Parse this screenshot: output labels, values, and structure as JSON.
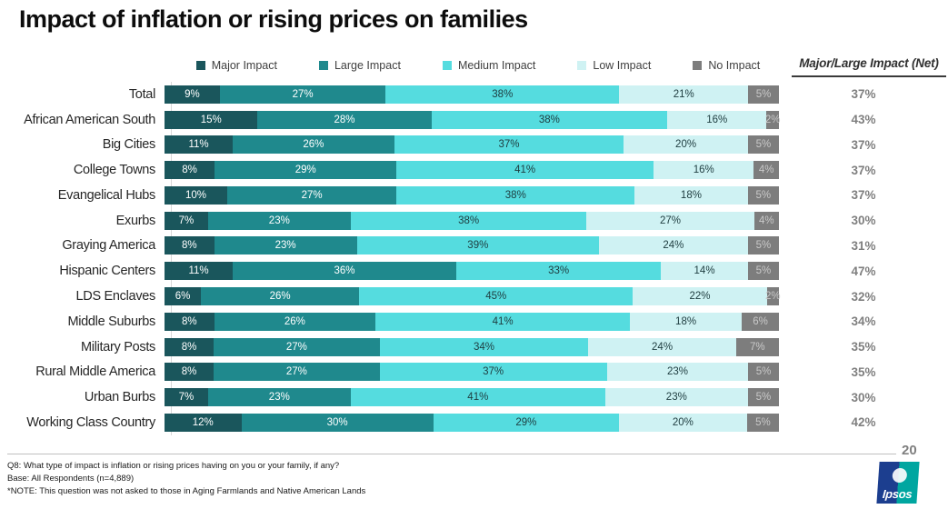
{
  "title": "Impact of inflation or rising prices on families",
  "net_column": {
    "header": "Major/Large Impact (Net)"
  },
  "legend": [
    {
      "label": "Major Impact",
      "color": "#1A565C",
      "text_color": "#FFFFFF"
    },
    {
      "label": "Large Impact",
      "color": "#1F898D",
      "text_color": "#FFFFFF"
    },
    {
      "label": "Medium Impact",
      "color": "#55DCDF",
      "text_color": "#1E3C3F"
    },
    {
      "label": "Low Impact",
      "color": "#CFF2F3",
      "text_color": "#1E3C3F"
    },
    {
      "label": "No Impact",
      "color": "#7D7D7D",
      "text_color": "#C9C9C9"
    }
  ],
  "chart_data": {
    "type": "bar",
    "orientation": "horizontal",
    "stacked": true,
    "unit": "%",
    "title": "Impact of inflation or rising prices on families",
    "categories": [
      "Total",
      "African American South",
      "Big Cities",
      "College Towns",
      "Evangelical Hubs",
      "Exurbs",
      "Graying America",
      "Hispanic Centers",
      "LDS Enclaves",
      "Middle Suburbs",
      "Military Posts",
      "Rural Middle America",
      "Urban Burbs",
      "Working Class Country"
    ],
    "series": [
      {
        "name": "Major Impact",
        "values": [
          9,
          15,
          11,
          8,
          10,
          7,
          8,
          11,
          6,
          8,
          8,
          8,
          7,
          12
        ]
      },
      {
        "name": "Large Impact",
        "values": [
          27,
          28,
          26,
          29,
          27,
          23,
          23,
          36,
          26,
          26,
          27,
          27,
          23,
          30
        ]
      },
      {
        "name": "Medium Impact",
        "values": [
          38,
          38,
          37,
          41,
          38,
          38,
          39,
          33,
          45,
          41,
          34,
          37,
          41,
          29
        ]
      },
      {
        "name": "Low Impact",
        "values": [
          21,
          16,
          20,
          16,
          18,
          27,
          24,
          14,
          22,
          18,
          24,
          23,
          23,
          20
        ]
      },
      {
        "name": "No Impact",
        "values": [
          5,
          2,
          5,
          4,
          5,
          4,
          5,
          5,
          2,
          6,
          7,
          5,
          5,
          5
        ]
      }
    ],
    "net_label": "Major/Large Impact (Net)",
    "net_values": [
      37,
      43,
      37,
      37,
      37,
      30,
      31,
      47,
      32,
      34,
      35,
      35,
      30,
      42
    ],
    "legend_position": "top",
    "axis_range": [
      0,
      100
    ],
    "grid": false
  },
  "footer": {
    "line1": "Q8: What type of impact is inflation or rising prices having on you or your family, if any?",
    "line2": "Base: All Respondents (n=4,889)",
    "line3": "*NOTE: This question was not asked to those in Aging Farmlands and Native American Lands"
  },
  "page_number": "20",
  "logo": {
    "text": "Ipsos",
    "blue": "#1C3E8F",
    "teal": "#00A6A0"
  },
  "colors": {
    "major": "#1A565C",
    "large": "#1F898D",
    "medium": "#55DCDF",
    "low": "#CFF2F3",
    "no_impact": "#7D7D7D",
    "net_text": "#7F7F7F",
    "axis_line": "#D9D9D9",
    "divider": "#BFBFBF",
    "title_text": "#0D0D0D"
  }
}
